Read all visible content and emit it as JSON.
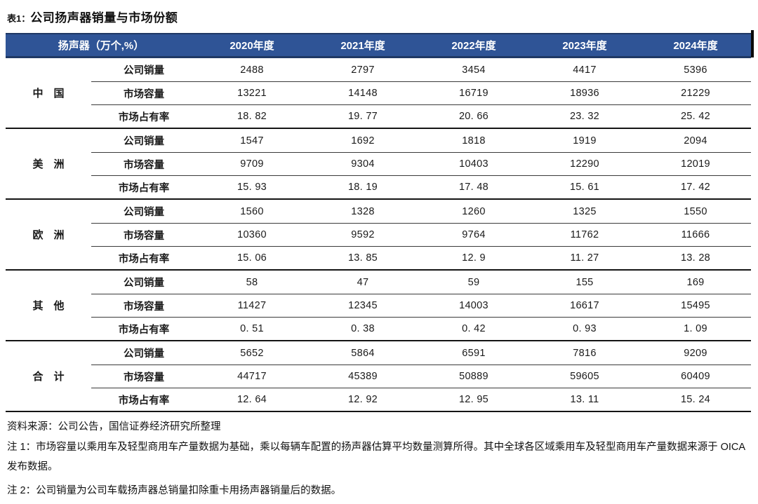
{
  "title": {
    "prefix": "表1：",
    "text": "公司扬声器销量与市场份额"
  },
  "table": {
    "header": {
      "label": "扬声器（万个,%）",
      "years": [
        "2020年度",
        "2021年度",
        "2022年度",
        "2023年度",
        "2024年度"
      ]
    },
    "groups": [
      {
        "region": "中　国",
        "rows": [
          {
            "metric": "公司销量",
            "values": [
              "2488",
              "2797",
              "3454",
              "4417",
              "5396"
            ]
          },
          {
            "metric": "市场容量",
            "values": [
              "13221",
              "14148",
              "16719",
              "18936",
              "21229"
            ]
          },
          {
            "metric": "市场占有率",
            "values": [
              "18. 82",
              "19. 77",
              "20. 66",
              "23. 32",
              "25. 42"
            ]
          }
        ]
      },
      {
        "region": "美　洲",
        "rows": [
          {
            "metric": "公司销量",
            "values": [
              "1547",
              "1692",
              "1818",
              "1919",
              "2094"
            ]
          },
          {
            "metric": "市场容量",
            "values": [
              "9709",
              "9304",
              "10403",
              "12290",
              "12019"
            ]
          },
          {
            "metric": "市场占有率",
            "values": [
              "15. 93",
              "18. 19",
              "17. 48",
              "15. 61",
              "17. 42"
            ]
          }
        ]
      },
      {
        "region": "欧　洲",
        "rows": [
          {
            "metric": "公司销量",
            "values": [
              "1560",
              "1328",
              "1260",
              "1325",
              "1550"
            ]
          },
          {
            "metric": "市场容量",
            "values": [
              "10360",
              "9592",
              "9764",
              "11762",
              "11666"
            ]
          },
          {
            "metric": "市场占有率",
            "values": [
              "15. 06",
              "13. 85",
              "12. 9",
              "11. 27",
              "13. 28"
            ]
          }
        ]
      },
      {
        "region": "其　他",
        "rows": [
          {
            "metric": "公司销量",
            "values": [
              "58",
              "47",
              "59",
              "155",
              "169"
            ]
          },
          {
            "metric": "市场容量",
            "values": [
              "11427",
              "12345",
              "14003",
              "16617",
              "15495"
            ]
          },
          {
            "metric": "市场占有率",
            "values": [
              "0. 51",
              "0. 38",
              "0. 42",
              "0. 93",
              "1. 09"
            ]
          }
        ]
      },
      {
        "region": "合　计",
        "rows": [
          {
            "metric": "公司销量",
            "values": [
              "5652",
              "5864",
              "6591",
              "7816",
              "9209"
            ]
          },
          {
            "metric": "市场容量",
            "values": [
              "44717",
              "45389",
              "50889",
              "59605",
              "60409"
            ]
          },
          {
            "metric": "市场占有率",
            "values": [
              "12. 64",
              "12. 92",
              "12. 95",
              "13. 11",
              "15. 24"
            ]
          }
        ]
      }
    ]
  },
  "footer": {
    "source": "资料来源：公司公告，国信证券经济研究所整理",
    "note1": "注 1：市场容量以乘用车及轻型商用车产量数据为基础，乘以每辆车配置的扬声器估算平均数量测算所得。其中全球各区域乘用车及轻型商用车产量数据来源于 OICA 发布数据。",
    "note2": "注 2：公司销量为公司车载扬声器总销量扣除重卡用扬声器销量后的数据。"
  },
  "colors": {
    "header_bg": "#2F5496",
    "header_border": "#1F3864",
    "group_rule": "#141414",
    "row_rule": "#3a3a3a",
    "text": "#1a1a1a"
  }
}
